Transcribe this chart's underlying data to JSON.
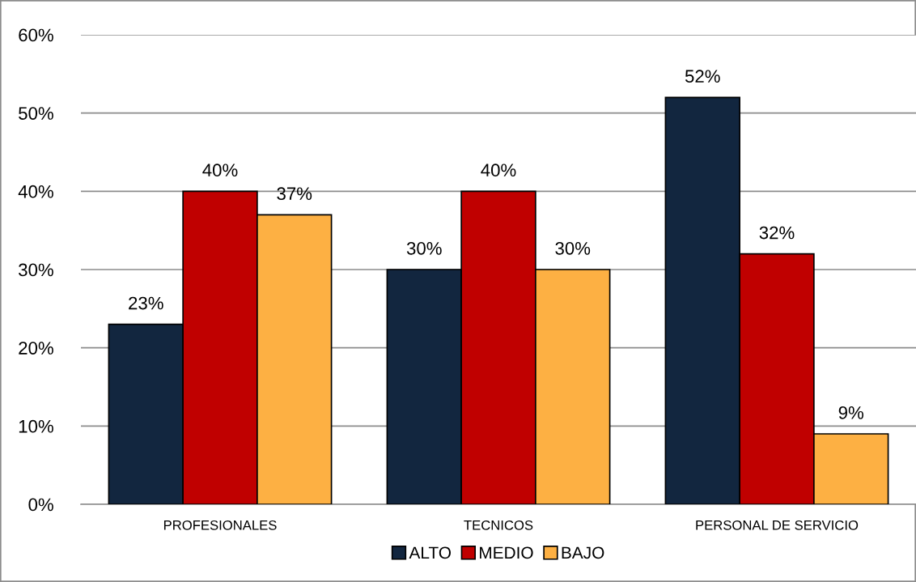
{
  "chart_data": {
    "type": "bar",
    "categories": [
      "PROFESIONALES",
      "TECNICOS",
      "PERSONAL DE SERVICIO"
    ],
    "series": [
      {
        "name": "ALTO",
        "color": "#12263f",
        "values": [
          23,
          30,
          52
        ],
        "value_labels": [
          "23%",
          "30%",
          "52%"
        ]
      },
      {
        "name": "MEDIO",
        "color": "#c00000",
        "values": [
          40,
          40,
          32
        ],
        "value_labels": [
          "40%",
          "40%",
          "32%"
        ]
      },
      {
        "name": "BAJO",
        "color": "#fdb043",
        "values": [
          37,
          30,
          9
        ],
        "value_labels": [
          "37%",
          "30%",
          "9%"
        ]
      }
    ],
    "ylim": [
      0,
      60
    ],
    "yticks": [
      {
        "value": 0,
        "label": "0%"
      },
      {
        "value": 10,
        "label": "10%"
      },
      {
        "value": 20,
        "label": "20%"
      },
      {
        "value": 30,
        "label": "30%"
      },
      {
        "value": 40,
        "label": "40%"
      },
      {
        "value": 50,
        "label": "50%"
      },
      {
        "value": 60,
        "label": "60%"
      }
    ],
    "grid": "y",
    "legend": "bottom"
  }
}
